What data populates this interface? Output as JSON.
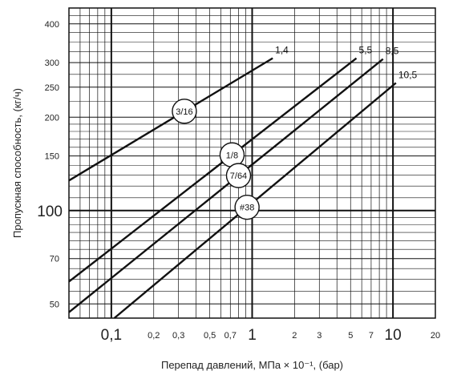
{
  "chart_data": {
    "type": "line",
    "x_scale": "log",
    "y_scale": "log",
    "xlim": [
      0.05,
      20
    ],
    "ylim": [
      45,
      450
    ],
    "grid": true,
    "xlabel": "Перепад давлений, МПа × 10⁻¹, (бар)",
    "ylabel": "Пропускная способность, (кг/ч)",
    "x_ticks": [
      {
        "value": 0.1,
        "label": "0,1",
        "major": true
      },
      {
        "value": 0.2,
        "label": "0,2",
        "major": false
      },
      {
        "value": 0.3,
        "label": "0,3",
        "major": false
      },
      {
        "value": 0.5,
        "label": "0,5",
        "major": false
      },
      {
        "value": 0.7,
        "label": "0,7",
        "major": false
      },
      {
        "value": 1,
        "label": "1",
        "major": true
      },
      {
        "value": 2,
        "label": "2",
        "major": false
      },
      {
        "value": 3,
        "label": "3",
        "major": false
      },
      {
        "value": 5,
        "label": "5",
        "major": false
      },
      {
        "value": 7,
        "label": "7",
        "major": false
      },
      {
        "value": 10,
        "label": "10",
        "major": true
      },
      {
        "value": 20,
        "label": "20",
        "major": false
      }
    ],
    "y_ticks": [
      {
        "value": 50,
        "label": "50",
        "major": false
      },
      {
        "value": 70,
        "label": "70",
        "major": false
      },
      {
        "value": 100,
        "label": "100",
        "major": true
      },
      {
        "value": 150,
        "label": "150",
        "major": false
      },
      {
        "value": 200,
        "label": "200",
        "major": false
      },
      {
        "value": 250,
        "label": "250",
        "major": false
      },
      {
        "value": 300,
        "label": "300",
        "major": false
      },
      {
        "value": 400,
        "label": "400",
        "major": false
      }
    ],
    "series": [
      {
        "end_label": "1,4",
        "bubble": "3/16",
        "bubble_x": 0.33,
        "x": [
          0.05,
          1.4
        ],
        "y": [
          125,
          310
        ]
      },
      {
        "end_label": "5,5",
        "bubble": "1/8",
        "bubble_x": 0.72,
        "x": [
          0.05,
          5.5
        ],
        "y": [
          59,
          310
        ]
      },
      {
        "end_label": "8,5",
        "bubble": "7/64",
        "bubble_x": 0.8,
        "x": [
          0.05,
          8.5
        ],
        "y": [
          47,
          308
        ]
      },
      {
        "end_label": "10,5",
        "bubble": "#38",
        "bubble_x": 0.92,
        "x": [
          0.105,
          10.5
        ],
        "y": [
          45,
          258
        ]
      }
    ]
  }
}
